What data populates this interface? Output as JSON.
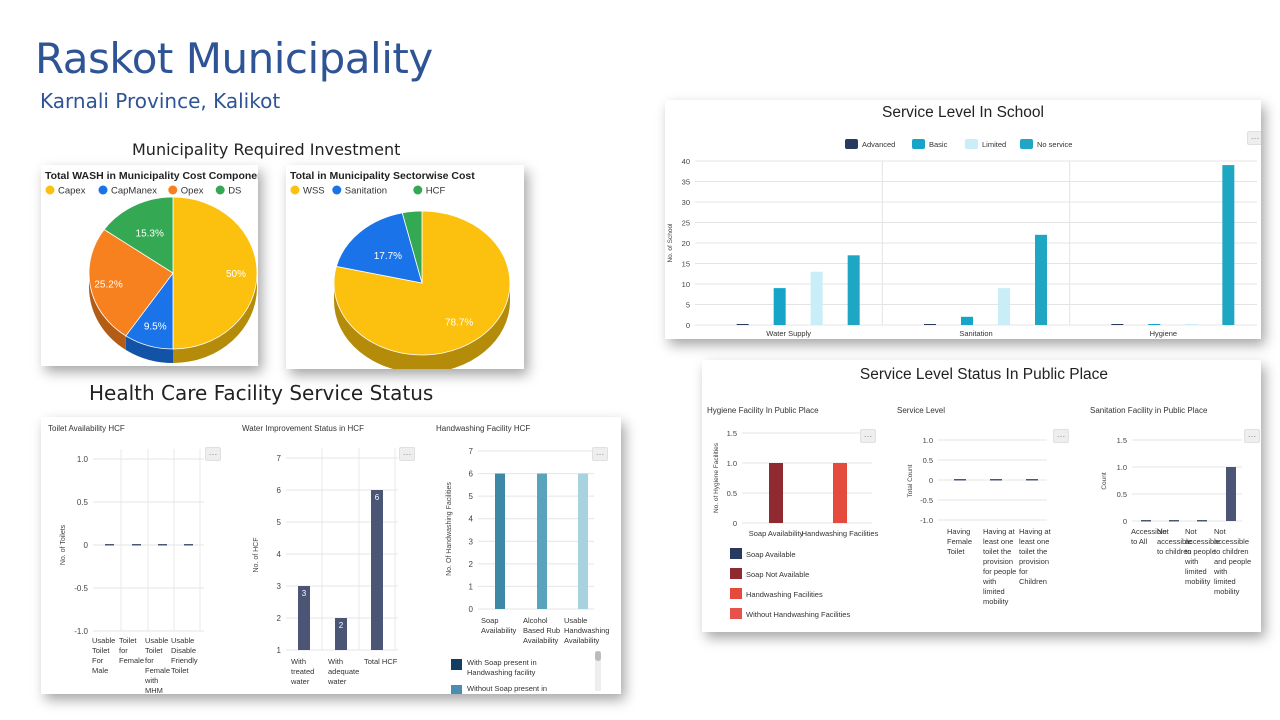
{
  "header": {
    "title": "Raskot Municipality",
    "subtitle": "Karnali Province, Kalikot"
  },
  "sections": {
    "investment": "Municipality Required Investment",
    "hcf": "Health Care Facility Service Status"
  },
  "colors": {
    "title_blue": "#2f5496",
    "yellow": "#fcc10e",
    "blue": "#1a73e8",
    "orange": "#f7801f",
    "green": "#34a853",
    "navy": "#283b5e",
    "teal": "#16a5c8",
    "light_cyan": "#c9eef7",
    "dark_teal": "#1fa6c3",
    "slate": "#4b5676",
    "maroon": "#8f2a30",
    "red": "#e54b3d"
  },
  "chart_data": [
    {
      "id": "wash_cost_component",
      "type": "pie",
      "title": "Total WASH in Municipality Cost Component",
      "legend": "top-left",
      "slices": [
        {
          "label": "Capex",
          "value": 50,
          "display": "50%"
        },
        {
          "label": "CapManex",
          "value": 9.5,
          "display": "9.5%"
        },
        {
          "label": "Opex",
          "value": 25.2,
          "display": "25.2%"
        },
        {
          "label": "DS",
          "value": 15.3,
          "display": "15.3%"
        }
      ]
    },
    {
      "id": "sectorwise_cost",
      "type": "pie",
      "title": "Total in Municipality Sectorwise Cost",
      "legend": "top-left",
      "slices": [
        {
          "label": "WSS",
          "value": 78.7,
          "display": "78.7%"
        },
        {
          "label": "Sanitation",
          "value": 17.7,
          "display": "17.7%"
        },
        {
          "label": "HCF",
          "value": 3.6,
          "display": ""
        }
      ]
    },
    {
      "id": "school_service",
      "type": "bar",
      "title": "Service Level In School",
      "ylabel": "No. of School",
      "ylim": [
        0,
        40
      ],
      "yticks": [
        "0",
        "5",
        "10",
        "15",
        "20",
        "25",
        "30",
        "35",
        "40"
      ],
      "legend": "top-center",
      "categories": [
        "Water Supply",
        "Sanitation",
        "Hygiene"
      ],
      "series": [
        {
          "name": "Advanced",
          "values": [
            0,
            0,
            0
          ]
        },
        {
          "name": "Basic",
          "values": [
            9,
            2,
            0
          ]
        },
        {
          "name": "Limited",
          "values": [
            13,
            9,
            0
          ]
        },
        {
          "name": "No service",
          "values": [
            17,
            22,
            39
          ]
        }
      ]
    },
    {
      "id": "public_place",
      "title": "Service Level Status In Public Place",
      "panels": [
        {
          "id": "hygiene_public",
          "type": "bar",
          "title": "Hygiene Facility In Public Place",
          "ylabel": "No. of Hygiene Facilities",
          "ylim": [
            0,
            1.5
          ],
          "yticks": [
            "0",
            "0.5",
            "1.0",
            "1.5"
          ],
          "categories": [
            "Soap Availability",
            "Handwashing Facilities"
          ],
          "series": [
            {
              "name": "Soap Available",
              "values": [
                0,
                0
              ]
            },
            {
              "name": "Soap Not Available",
              "values": [
                1,
                0
              ]
            },
            {
              "name": "Handwashing Facilities",
              "values": [
                0,
                1
              ]
            },
            {
              "name": "Without Handwashing Facilities",
              "values": [
                0,
                0
              ]
            }
          ]
        },
        {
          "id": "service_level",
          "type": "bar",
          "title": "Service Level",
          "ylabel": "Total Count",
          "ylim": [
            -1,
            1
          ],
          "yticks": [
            "-1.0",
            "-0.5",
            "0",
            "0.5",
            "1.0"
          ],
          "categories": [
            "Having Female Toilet",
            "Having at least one toilet the provision for people with limited mobility",
            "Having at least one toilet the provision for Children"
          ],
          "values": [
            0,
            0,
            0
          ]
        },
        {
          "id": "sanitation_public",
          "type": "bar",
          "title": "Sanitation Facility in Public Place",
          "ylabel": "Count",
          "ylim": [
            0,
            1.5
          ],
          "yticks": [
            "0",
            "0.5",
            "1.0",
            "1.5"
          ],
          "categories": [
            "Accessible to All",
            "Not accessible to children",
            "Not accessible to people with limited mobility",
            "Not accessible to children and people with limited mobility"
          ],
          "values": [
            0,
            0,
            0,
            1
          ]
        }
      ]
    },
    {
      "id": "hcf_toilet",
      "type": "bar",
      "title": "Toilet Availability HCF",
      "ylabel": "No. of Toilets",
      "ylim": [
        -1,
        1
      ],
      "yticks": [
        "-1.0",
        "-0.5",
        "0",
        "0.5",
        "1.0"
      ],
      "categories": [
        "Usable Toilet For Male",
        "Toilet for Female",
        "Usable Toilet for Female with MHM Facility",
        "Usable Disable Friendly Toilet"
      ],
      "values": [
        0,
        0,
        0,
        0
      ]
    },
    {
      "id": "hcf_water",
      "type": "bar",
      "title": "Water Improvement Status in HCF",
      "ylabel": "No. of HCF",
      "ylim": [
        1,
        7
      ],
      "yticks": [
        "1",
        "2",
        "3",
        "4",
        "5",
        "6",
        "7"
      ],
      "categories": [
        "With treated water",
        "With adequate water",
        "Total HCF"
      ],
      "values": [
        3,
        2,
        6
      ],
      "data_labels": [
        "3",
        "2",
        "6"
      ]
    },
    {
      "id": "hcf_handwashing",
      "type": "bar",
      "title": "Handwashing Facility HCF",
      "ylabel": "No. Of Handwashing Facilities",
      "ylim": [
        0,
        7
      ],
      "yticks": [
        "0",
        "1",
        "2",
        "3",
        "4",
        "5",
        "6",
        "7"
      ],
      "categories": [
        "Soap Availability",
        "Alcohol Based Rub Availability",
        "Usable Handwashing Availability"
      ],
      "values": [
        6,
        6,
        6
      ],
      "legend": [
        "With Soap present in Handwashing facility",
        "Without Soap present in"
      ]
    }
  ]
}
